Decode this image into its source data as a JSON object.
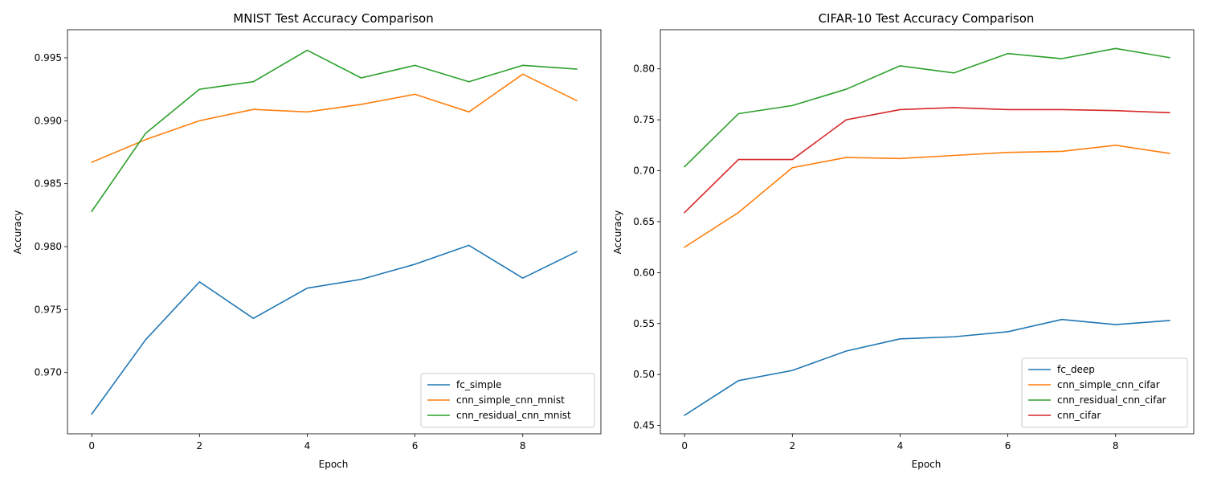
{
  "chart_data": [
    {
      "type": "line",
      "title": "MNIST Test Accuracy Comparison",
      "xlabel": "Epoch",
      "ylabel": "Accuracy",
      "x": [
        0,
        1,
        2,
        3,
        4,
        5,
        6,
        7,
        8,
        9
      ],
      "xlim": [
        -0.45,
        9.45
      ],
      "ylim": [
        0.96513,
        0.99723
      ],
      "xticks": [
        0,
        2,
        4,
        6,
        8
      ],
      "yticks": [
        0.97,
        0.975,
        0.98,
        0.985,
        0.99,
        0.995
      ],
      "ytick_labels": [
        "0.970",
        "0.975",
        "0.980",
        "0.985",
        "0.990",
        "0.995"
      ],
      "grid": false,
      "legend_position": "lower-right",
      "series": [
        {
          "name": "fc_simple",
          "color": "#1f77b4",
          "values": [
            0.9667,
            0.9726,
            0.9772,
            0.9743,
            0.9767,
            0.9774,
            0.9786,
            0.9801,
            0.9775,
            0.9796
          ]
        },
        {
          "name": "cnn_simple_cnn_mnist",
          "color": "#ff7f0e",
          "values": [
            0.9867,
            0.9885,
            0.99,
            0.9909,
            0.9907,
            0.9913,
            0.9921,
            0.9907,
            0.9937,
            0.9916
          ]
        },
        {
          "name": "cnn_residual_cnn_mnist",
          "color": "#2ca02c",
          "values": [
            0.9828,
            0.989,
            0.9925,
            0.9931,
            0.9956,
            0.9934,
            0.9944,
            0.9931,
            0.9944,
            0.9941
          ]
        }
      ]
    },
    {
      "type": "line",
      "title": "CIFAR-10 Test Accuracy Comparison",
      "xlabel": "Epoch",
      "ylabel": "Accuracy",
      "x": [
        0,
        1,
        2,
        3,
        4,
        5,
        6,
        7,
        8,
        9
      ],
      "xlim": [
        -0.45,
        9.45
      ],
      "ylim": [
        0.4418,
        0.8384
      ],
      "xticks": [
        0,
        2,
        4,
        6,
        8
      ],
      "yticks": [
        0.45,
        0.5,
        0.55,
        0.6,
        0.65,
        0.7,
        0.75,
        0.8
      ],
      "ytick_labels": [
        "0.45",
        "0.50",
        "0.55",
        "0.60",
        "0.65",
        "0.70",
        "0.75",
        "0.80"
      ],
      "grid": false,
      "legend_position": "lower-right",
      "series": [
        {
          "name": "fc_deep",
          "color": "#1f77b4",
          "values": [
            0.46,
            0.494,
            0.504,
            0.523,
            0.535,
            0.537,
            0.542,
            0.554,
            0.549,
            0.553
          ]
        },
        {
          "name": "cnn_simple_cnn_cifar",
          "color": "#ff7f0e",
          "values": [
            0.625,
            0.659,
            0.703,
            0.713,
            0.712,
            0.715,
            0.718,
            0.719,
            0.725,
            0.717
          ]
        },
        {
          "name": "cnn_residual_cnn_cifar",
          "color": "#2ca02c",
          "values": [
            0.704,
            0.756,
            0.764,
            0.78,
            0.803,
            0.796,
            0.815,
            0.81,
            0.82,
            0.811
          ]
        },
        {
          "name": "cnn_cifar",
          "color": "#d62728",
          "values": [
            0.659,
            0.711,
            0.711,
            0.75,
            0.76,
            0.762,
            0.76,
            0.76,
            0.759,
            0.757
          ]
        }
      ]
    }
  ]
}
